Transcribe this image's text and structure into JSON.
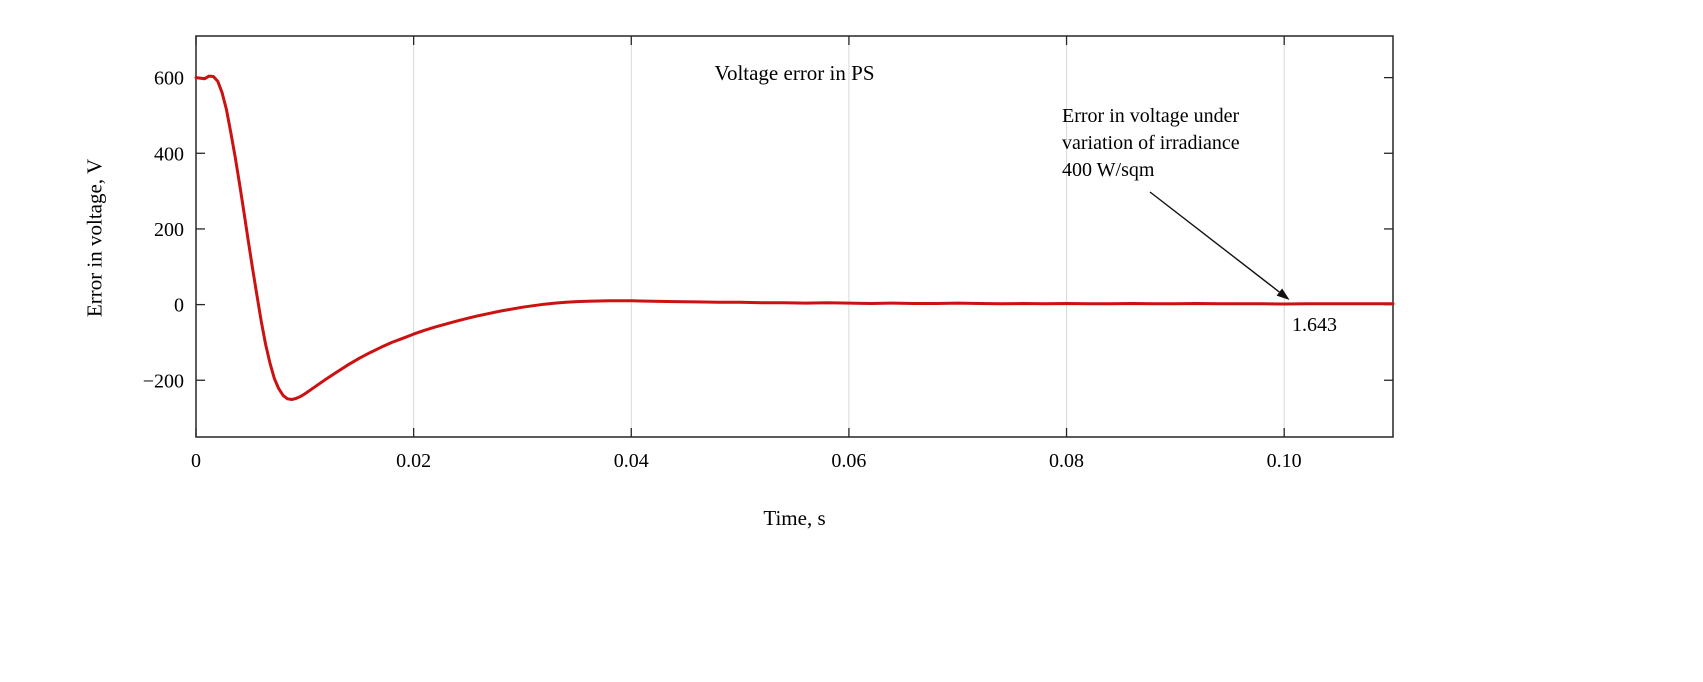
{
  "page": {
    "background": "#ffffff"
  },
  "chart_data": {
    "type": "line",
    "title": "Voltage error in PS",
    "xlabel": "Time, s",
    "ylabel": "Error in voltage, V",
    "xlim": [
      0,
      0.11
    ],
    "ylim": [
      -350,
      710
    ],
    "xticks": [
      0,
      0.02,
      0.04,
      0.06,
      0.08,
      0.1
    ],
    "xtick_labels": [
      "0",
      "0.02",
      "0.04",
      "0.06",
      "0.08",
      "0.10"
    ],
    "yticks": [
      -200,
      0,
      200,
      400,
      600
    ],
    "ytick_labels": [
      "−200",
      "0",
      "200",
      "400",
      "600"
    ],
    "grid": "vertical",
    "legend": "none",
    "colors": {
      "line": "#cc1111",
      "axis": "#262626",
      "grid": "#d8d8d8",
      "arrow": "#111111"
    },
    "series": [
      {
        "x": [
          0,
          0.0008,
          0.0012,
          0.0016,
          0.002,
          0.0024,
          0.0028,
          0.0032,
          0.0036,
          0.004,
          0.0044,
          0.0048,
          0.0052,
          0.0056,
          0.006,
          0.0064,
          0.0068,
          0.0072,
          0.0076,
          0.008,
          0.0084,
          0.0088,
          0.0092,
          0.0096,
          0.01,
          0.011,
          0.012,
          0.013,
          0.014,
          0.015,
          0.016,
          0.017,
          0.018,
          0.019,
          0.02,
          0.021,
          0.022,
          0.023,
          0.024,
          0.025,
          0.026,
          0.027,
          0.028,
          0.029,
          0.03,
          0.031,
          0.032,
          0.033,
          0.034,
          0.035,
          0.036,
          0.038,
          0.04,
          0.042,
          0.044,
          0.046,
          0.048,
          0.05,
          0.052,
          0.054,
          0.056,
          0.058,
          0.06,
          0.062,
          0.064,
          0.066,
          0.068,
          0.07,
          0.072,
          0.074,
          0.076,
          0.078,
          0.08,
          0.082,
          0.084,
          0.086,
          0.088,
          0.09,
          0.092,
          0.094,
          0.096,
          0.098,
          0.1,
          0.102,
          0.104,
          0.106,
          0.108,
          0.11
        ],
        "y": [
          600,
          597,
          604,
          603,
          590,
          560,
          515,
          455,
          390,
          320,
          245,
          170,
          95,
          25,
          -45,
          -105,
          -155,
          -195,
          -222,
          -240,
          -249,
          -251,
          -248,
          -243,
          -236,
          -216,
          -196,
          -177,
          -159,
          -142,
          -127,
          -113,
          -100,
          -89,
          -78,
          -68,
          -59,
          -51,
          -43,
          -36,
          -29,
          -23,
          -17,
          -12,
          -7,
          -3,
          1,
          4,
          6,
          8,
          9,
          10,
          10,
          9,
          8,
          7,
          6,
          6,
          5,
          5,
          4,
          5,
          4,
          3,
          4,
          3,
          3,
          4,
          3,
          2,
          3,
          2,
          3,
          2,
          2,
          3,
          2,
          2,
          3,
          2,
          2,
          2,
          1.643,
          2,
          2,
          2,
          2,
          2
        ]
      }
    ],
    "annotation": {
      "lines": [
        "Error in voltage under",
        "variation of irradiance",
        "400 W/sqm"
      ],
      "value_label": "1.643",
      "point_x": 0.1005,
      "point_y": 1.643
    }
  }
}
